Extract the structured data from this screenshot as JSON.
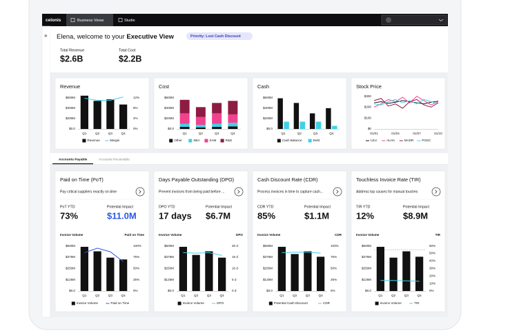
{
  "top_bar": {
    "logo": "celonis",
    "tabs": [
      "Business Views",
      "Studio"
    ]
  },
  "header": {
    "greeting": "Elena, welcome to your ",
    "view": "Executive View",
    "priority": "Priority: Lost Cash Discount",
    "kpis": [
      {
        "label": "Total Revenue",
        "value": "$2.6B"
      },
      {
        "label": "Total Cost",
        "value": "$2.2B"
      }
    ]
  },
  "tabs": [
    "Accounts Payable",
    "Accounts Receivable"
  ],
  "kpi_cards": [
    {
      "title": "Paid on Time (PoT)",
      "subtitle": "Pay critical suppliers exactly on-time",
      "left_label": "PoT YTD",
      "left_value": "73%",
      "right_label": "Potential Impact",
      "right_value": "$11.0M",
      "color": "#2957e6"
    },
    {
      "title": "Days Payable Outstanding (DPO)",
      "subtitle": "Prevent invoices from being paid before ...",
      "left_label": "DPO YTD",
      "left_value": "17 days",
      "right_label": "Potential Impact",
      "right_value": "$6.7M"
    },
    {
      "title": "Cash Discount Rate (CDR)",
      "subtitle": "Process invoices in time to capture cash...",
      "left_label": "CDR YTD",
      "left_value": "85%",
      "right_label": "Potential Impact",
      "right_value": "$1.1M"
    },
    {
      "title": "Touchless Invoice Rate (TIR)",
      "subtitle": "Address top causes for manual touches",
      "left_label": "TIR YTD",
      "left_value": "12%",
      "right_label": "Potential Impact",
      "right_value": "$8.9M"
    }
  ],
  "chart_data": [
    {
      "type": "bar",
      "title": "Revenue",
      "categories": [
        "Q1",
        "Q2",
        "Q3",
        "Q4"
      ],
      "series": [
        {
          "name": "Revenue",
          "color": "#111111",
          "values": [
            640,
            540,
            570,
            470
          ]
        },
        {
          "name": "Margin",
          "color": "#3fd0e8",
          "axis": "y2",
          "values": [
            11.8,
            11,
            11,
            12.3
          ]
        }
      ],
      "ylim": [
        0,
        650
      ],
      "yticks": [
        {
          "value": 0,
          "label": "$0.0"
        },
        {
          "value": 200,
          "label": "$200M"
        },
        {
          "value": 400,
          "label": "$400M"
        },
        {
          "value": 600,
          "label": "$600M"
        }
      ],
      "y2lim": [
        0,
        13
      ],
      "y2ticks": [
        {
          "value": 0,
          "label": "0%"
        },
        {
          "value": 4,
          "label": "4%"
        },
        {
          "value": 8,
          "label": "8%"
        },
        {
          "value": 12,
          "label": "12%"
        }
      ]
    },
    {
      "type": "stacked_bar",
      "title": "Cost",
      "categories": [
        "Q1",
        "Q2",
        "Q3",
        "Q4"
      ],
      "series": [
        {
          "name": "Other",
          "color": "#111111",
          "values": [
            40,
            30,
            40,
            50
          ]
        },
        {
          "name": "SBA",
          "color": "#3fd0e8",
          "values": [
            60,
            50,
            60,
            70
          ]
        },
        {
          "name": "SAM",
          "color": "#f0428f",
          "values": [
            200,
            150,
            200,
            160
          ]
        },
        {
          "name": "R&D",
          "color": "#8e1b43",
          "values": [
            260,
            190,
            200,
            260
          ]
        }
      ],
      "ylim": [
        0,
        650
      ],
      "yticks": [
        {
          "value": 0,
          "label": "$0.0"
        },
        {
          "value": 200,
          "label": "$200M"
        },
        {
          "value": 400,
          "label": "$400M"
        },
        {
          "value": 600,
          "label": "$600M"
        }
      ]
    },
    {
      "type": "grouped_bar",
      "title": "Cash",
      "categories": [
        "Q1",
        "Q2",
        "Q3",
        "Q4"
      ],
      "series": [
        {
          "name": "Cash Balance",
          "color": "#111111",
          "values": [
            590,
            500,
            300,
            400
          ]
        },
        {
          "name": "Debt",
          "color": "#3fd0e8",
          "values": [
            140,
            140,
            140,
            60
          ]
        }
      ],
      "ylim": [
        0,
        650
      ],
      "yticks": [
        {
          "value": 0,
          "label": "$0.0"
        },
        {
          "value": 200,
          "label": "$200M"
        },
        {
          "value": 400,
          "label": "$400M"
        },
        {
          "value": 600,
          "label": "$600M"
        }
      ]
    },
    {
      "type": "line",
      "title": "Stock Price",
      "categories": [
        "01/01",
        null,
        null,
        "01/04",
        null,
        null,
        "01/07",
        null,
        null,
        "01/10"
      ],
      "series": [
        {
          "name": "LEU",
          "color": "#111111",
          "values": [
            240,
            250,
            235,
            245,
            260,
            250,
            240,
            230,
            245,
            255
          ]
        },
        {
          "name": "ALHA",
          "color": "#f0428f",
          "values": [
            200,
            230,
            270,
            250,
            290,
            240,
            300,
            260,
            220,
            250
          ]
        },
        {
          "name": "MADR",
          "color": "#8e1b43",
          "values": [
            260,
            280,
            210,
            230,
            190,
            250,
            270,
            220,
            200,
            240
          ]
        },
        {
          "name": "POSC",
          "color": "#3fd0e8",
          "values": [
            230,
            220,
            250,
            270,
            240,
            260,
            230,
            270,
            250,
            230
          ]
        }
      ],
      "ylim": [
        0,
        310
      ],
      "yticks": [
        {
          "value": 0,
          "label": "$0"
        },
        {
          "value": 100,
          "label": "$100"
        },
        {
          "value": 200,
          "label": "$200"
        },
        {
          "value": 300,
          "label": "$300"
        }
      ]
    },
    {
      "type": "bar",
      "y_label": "Invoice Volume",
      "y2_label": "Paid on Time",
      "categories": [
        "Q1",
        "Q2",
        "Q3",
        "Q4"
      ],
      "series": [
        {
          "name": "Invoice Volume",
          "color": "#111111",
          "values": [
            490,
            440,
            370,
            350
          ]
        },
        {
          "name": "Paid on Time",
          "color": "#2957e6",
          "axis": "y2",
          "values": [
            85,
            95,
            87,
            65
          ]
        }
      ],
      "ylim": [
        0,
        520
      ],
      "yticks": [
        {
          "value": 0,
          "label": "$0.0"
        },
        {
          "value": 125,
          "label": "$125M"
        },
        {
          "value": 250,
          "label": "$250M"
        },
        {
          "value": 375,
          "label": "$375M"
        },
        {
          "value": 500,
          "label": "$500M"
        }
      ],
      "y2lim": [
        0,
        104
      ],
      "y2ticks": [
        {
          "value": 0,
          "label": "0%"
        },
        {
          "value": 25,
          "label": "25%"
        },
        {
          "value": 50,
          "label": "50%"
        },
        {
          "value": 75,
          "label": "75%"
        },
        {
          "value": 100,
          "label": "100%"
        }
      ]
    },
    {
      "type": "bar",
      "y_label": "Invoice Volume",
      "y2_label": "DPO",
      "categories": [
        "Q1",
        "Q2",
        "Q3",
        "Q4"
      ],
      "series": [
        {
          "name": "Invoice Volume",
          "color": "#111111",
          "values": [
            490,
            400,
            440,
            370
          ]
        },
        {
          "name": "DPO",
          "color": "#3fd0e8",
          "axis": "y2",
          "values": [
            17,
            16.8,
            17,
            15.8
          ]
        }
      ],
      "ylim": [
        0,
        520
      ],
      "yticks": [
        {
          "value": 0,
          "label": "$0.0"
        },
        {
          "value": 125,
          "label": "$125M"
        },
        {
          "value": 250,
          "label": "$250M"
        },
        {
          "value": 375,
          "label": "$375M"
        },
        {
          "value": 500,
          "label": "$500M"
        }
      ],
      "y2lim": [
        0,
        20.8
      ],
      "y2ticks": [
        {
          "value": 0,
          "label": "0 d"
        },
        {
          "value": 5,
          "label": "5 d"
        },
        {
          "value": 10,
          "label": "10 d"
        },
        {
          "value": 15,
          "label": "15 d"
        },
        {
          "value": 20,
          "label": "20 d"
        }
      ]
    },
    {
      "type": "bar",
      "y_label": "Invoice Volume",
      "y2_label": "CDR",
      "categories": [
        "Q1",
        "Q2",
        "Q3",
        "Q4"
      ],
      "series": [
        {
          "name": "Potential Cash Discount",
          "color": "#111111",
          "values": [
            490,
            410,
            440,
            380
          ]
        },
        {
          "name": "CDR",
          "color": "#3fd0e8",
          "axis": "y2",
          "values": [
            85,
            86,
            86,
            84
          ]
        }
      ],
      "ylim": [
        0,
        520
      ],
      "yticks": [
        {
          "value": 0,
          "label": "$0.0"
        },
        {
          "value": 125,
          "label": "$125M"
        },
        {
          "value": 250,
          "label": "$250M"
        },
        {
          "value": 375,
          "label": "$375M"
        },
        {
          "value": 500,
          "label": "$500M"
        }
      ],
      "y2lim": [
        0,
        104
      ],
      "y2ticks": [
        {
          "value": 0,
          "label": "0%"
        },
        {
          "value": 25,
          "label": "25%"
        },
        {
          "value": 50,
          "label": "50%"
        },
        {
          "value": 75,
          "label": "75%"
        },
        {
          "value": 100,
          "label": "100%"
        }
      ]
    },
    {
      "type": "bar",
      "y_label": "Invoice Volume",
      "y2_label": "TIR",
      "categories": [
        "Q1",
        "Q2",
        "Q3",
        "Q4"
      ],
      "series": [
        {
          "name": "Invoice Volume",
          "color": "#111111",
          "values": [
            490,
            370,
            440,
            380
          ]
        },
        {
          "name": "TIR",
          "color": "#3fd0e8",
          "axis": "y2",
          "values": [
            14,
            14,
            13.5,
            13
          ]
        }
      ],
      "target": 55,
      "ylim": [
        0,
        520
      ],
      "yticks": [
        {
          "value": 0,
          "label": "$0.0"
        },
        {
          "value": 125,
          "label": "$125M"
        },
        {
          "value": 250,
          "label": "$250M"
        },
        {
          "value": 375,
          "label": "$375M"
        },
        {
          "value": 500,
          "label": "$500M"
        }
      ],
      "y2lim": [
        0,
        62.4
      ],
      "y2ticks": [
        {
          "value": 0,
          "label": "0%"
        },
        {
          "value": 10,
          "label": "10%"
        },
        {
          "value": 20,
          "label": "20%"
        },
        {
          "value": 30,
          "label": "30%"
        },
        {
          "value": 40,
          "label": "40%"
        },
        {
          "value": 50,
          "label": "50%"
        },
        {
          "value": 60,
          "label": "60%"
        }
      ]
    }
  ]
}
